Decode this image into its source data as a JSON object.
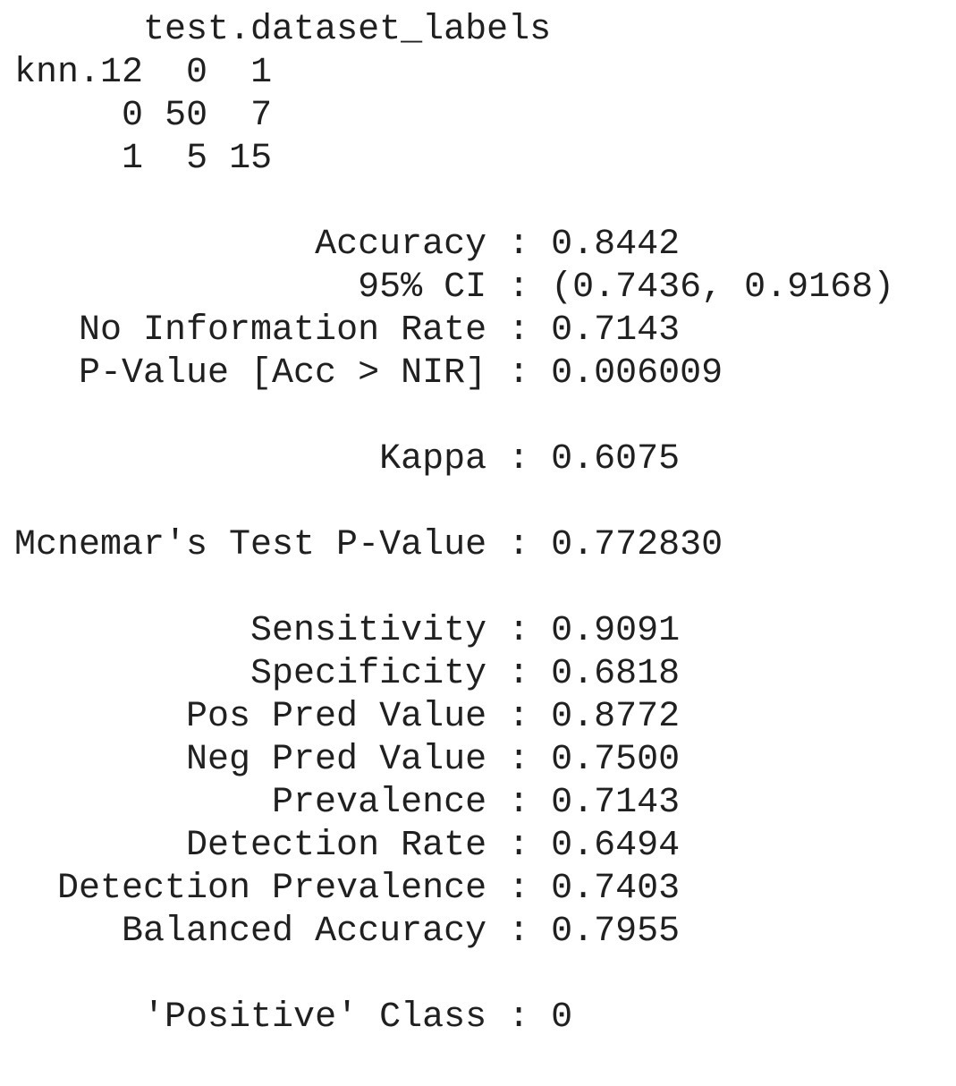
{
  "confusion_matrix": {
    "column_header": "test.dataset_labels",
    "row_header": "knn.12",
    "column_labels": [
      "0",
      "1"
    ],
    "rows": [
      {
        "label": "0",
        "values": [
          "50",
          "7"
        ]
      },
      {
        "label": "1",
        "values": [
          "5",
          "15"
        ]
      }
    ]
  },
  "stats": {
    "accuracy": {
      "label": "Accuracy",
      "value": "0.8442"
    },
    "ci95": {
      "label": "95% CI",
      "value": "(0.7436, 0.9168)"
    },
    "nir": {
      "label": "No Information Rate",
      "value": "0.7143"
    },
    "pvalue": {
      "label": "P-Value [Acc > NIR]",
      "value": "0.006009"
    },
    "kappa": {
      "label": "Kappa",
      "value": "0.6075"
    },
    "mcnemar": {
      "label": "Mcnemar's Test P-Value",
      "value": "0.772830"
    },
    "sensitivity": {
      "label": "Sensitivity",
      "value": "0.9091"
    },
    "specificity": {
      "label": "Specificity",
      "value": "0.6818"
    },
    "ppv": {
      "label": "Pos Pred Value",
      "value": "0.8772"
    },
    "npv": {
      "label": "Neg Pred Value",
      "value": "0.7500"
    },
    "prevalence": {
      "label": "Prevalence",
      "value": "0.7143"
    },
    "detection_rate": {
      "label": "Detection Rate",
      "value": "0.6494"
    },
    "detection_prevalence": {
      "label": "Detection Prevalence",
      "value": "0.7403"
    },
    "balanced_accuracy": {
      "label": "Balanced Accuracy",
      "value": "0.7955"
    },
    "positive_class": {
      "label": "'Positive' Class",
      "value": "0"
    }
  },
  "separator": " : "
}
